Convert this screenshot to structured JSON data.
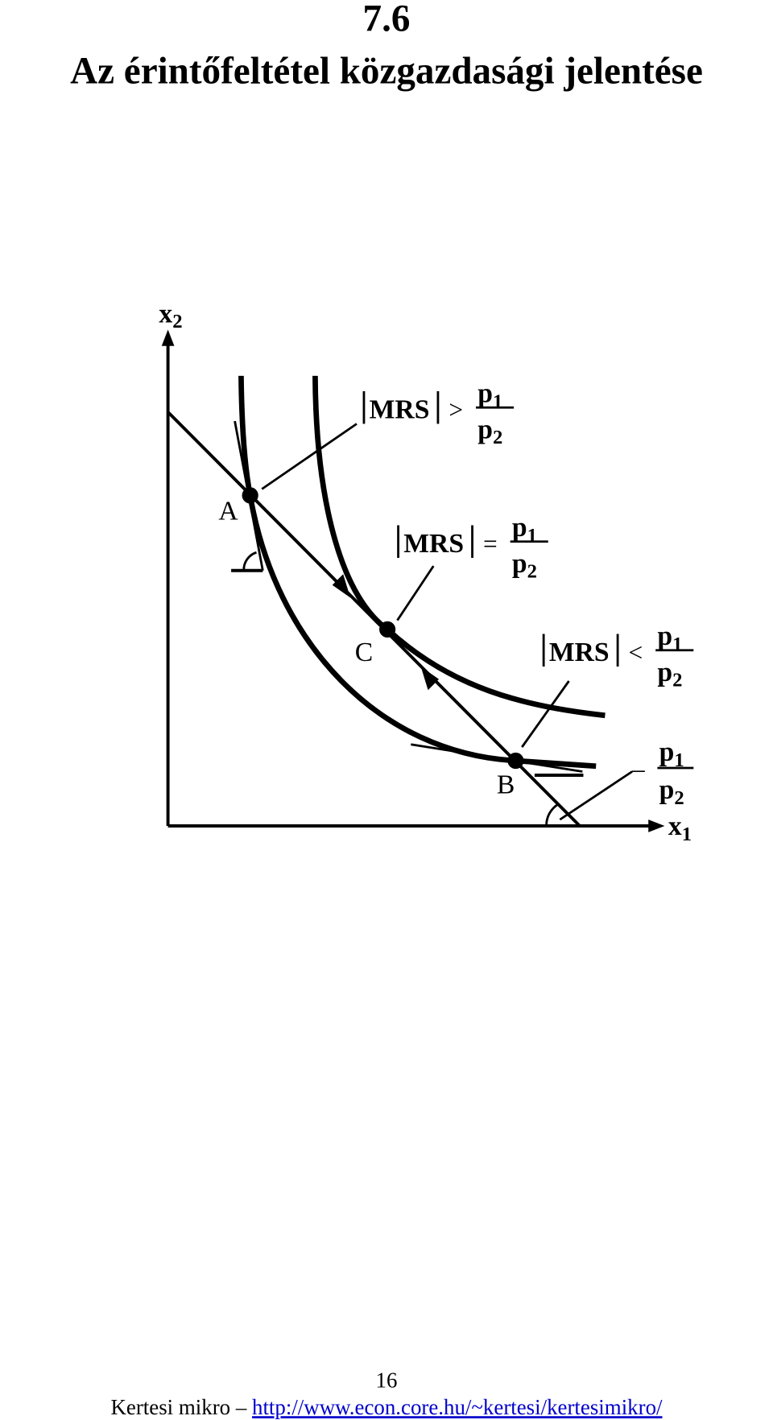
{
  "header": {
    "number": "7.6",
    "title": "Az érintőfeltétel közgazdasági jelentése"
  },
  "diagram": {
    "y_axis": {
      "base": "x",
      "sub": "2"
    },
    "x_axis": {
      "base": "x",
      "sub": "1"
    },
    "points": [
      "A",
      "C",
      "B"
    ],
    "conditions": [
      {
        "lhs": "MRS",
        "op": ">",
        "num": {
          "base": "p",
          "sub": "1"
        },
        "den": {
          "base": "p",
          "sub": "2"
        }
      },
      {
        "lhs": "MRS",
        "op": "=",
        "num": {
          "base": "p",
          "sub": "1"
        },
        "den": {
          "base": "p",
          "sub": "2"
        }
      },
      {
        "lhs": "MRS",
        "op": "<",
        "num": {
          "base": "p",
          "sub": "1"
        },
        "den": {
          "base": "p",
          "sub": "2"
        }
      }
    ],
    "slope": {
      "sign": "–",
      "num": {
        "base": "p",
        "sub": "1"
      },
      "den": {
        "base": "p",
        "sub": "2"
      }
    }
  },
  "footer": {
    "page": "16",
    "text": "Kertesi mikro – ",
    "link": "http://www.econ.core.hu/~kertesi/kertesimikro/"
  }
}
